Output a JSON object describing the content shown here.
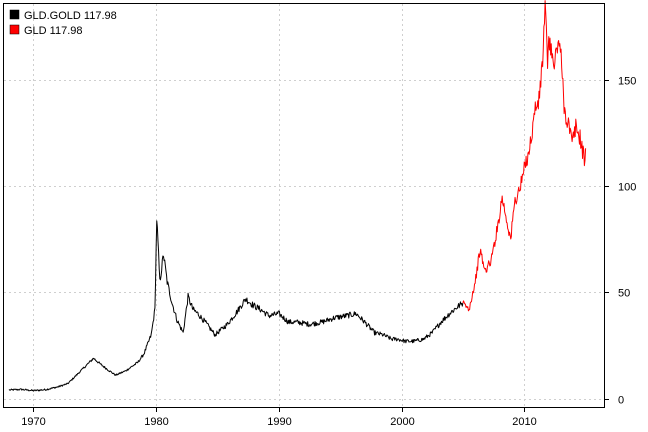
{
  "chart_data": {
    "type": "line",
    "title": "",
    "xlabel": "",
    "ylabel": "",
    "xlim": [
      1967.6,
      2016.5
    ],
    "ylim": [
      -4,
      186
    ],
    "x_ticks": [
      1970,
      1980,
      1990,
      2000,
      2010
    ],
    "y_ticks": [
      0,
      50,
      100,
      150
    ],
    "grid": true,
    "y_axis_side": "right",
    "legend_position": "top-left",
    "legend": [
      {
        "label": "GLD.GOLD 117.98",
        "color": "#000000"
      },
      {
        "label": "GLD 117.98",
        "color": "#ff0000"
      }
    ],
    "series": [
      {
        "name": "GLD.GOLD 117.98",
        "color": "#000000",
        "x": [
          1968.0,
          1969.0,
          1970.0,
          1971.0,
          1972.0,
          1972.8,
          1973.5,
          1974.2,
          1974.9,
          1975.5,
          1976.2,
          1976.7,
          1977.5,
          1978.5,
          1979.0,
          1979.6,
          1979.9,
          1980.05,
          1980.3,
          1980.6,
          1980.9,
          1981.3,
          1981.7,
          1982.2,
          1982.6,
          1983.0,
          1983.4,
          1984.0,
          1984.8,
          1985.2,
          1985.8,
          1986.6,
          1987.3,
          1987.9,
          1988.5,
          1989.2,
          1990.0,
          1990.8,
          1991.5,
          1992.5,
          1993.5,
          1994.5,
          1995.5,
          1996.3,
          1997.0,
          1997.8,
          1998.5,
          1999.2,
          1999.7,
          2000.3,
          2001.0,
          2001.8,
          2002.5,
          2003.2,
          2003.9,
          2004.5,
          2005.0
        ],
        "values": [
          4,
          4.3,
          3.7,
          4.2,
          5.5,
          7,
          11,
          15,
          19,
          16,
          13,
          11,
          13,
          17,
          21,
          30,
          42,
          85,
          55,
          68,
          55,
          45,
          37,
          31,
          48,
          42,
          40,
          36,
          30,
          32,
          35,
          41,
          47,
          44,
          42,
          39,
          40,
          36,
          36,
          35,
          36,
          38,
          39,
          40,
          36,
          31,
          30,
          28,
          28,
          27,
          27,
          28,
          31,
          36,
          40,
          43,
          45
        ]
      },
      {
        "name": "GLD 117.98",
        "color": "#ff0000",
        "x": [
          2005.0,
          2005.5,
          2006.0,
          2006.4,
          2006.8,
          2007.3,
          2007.8,
          2008.2,
          2008.5,
          2008.9,
          2009.2,
          2009.7,
          2010.0,
          2010.5,
          2010.9,
          2011.2,
          2011.5,
          2011.7,
          2011.9,
          2012.1,
          2012.4,
          2012.8,
          2013.0,
          2013.3,
          2013.6,
          2013.9,
          2014.2,
          2014.6,
          2014.9,
          2015.0
        ],
        "values": [
          45,
          42,
          55,
          70,
          60,
          65,
          80,
          95,
          86,
          75,
          92,
          100,
          108,
          120,
          137,
          140,
          160,
          183,
          160,
          170,
          155,
          170,
          160,
          135,
          130,
          120,
          128,
          122,
          112,
          118
        ]
      }
    ]
  }
}
